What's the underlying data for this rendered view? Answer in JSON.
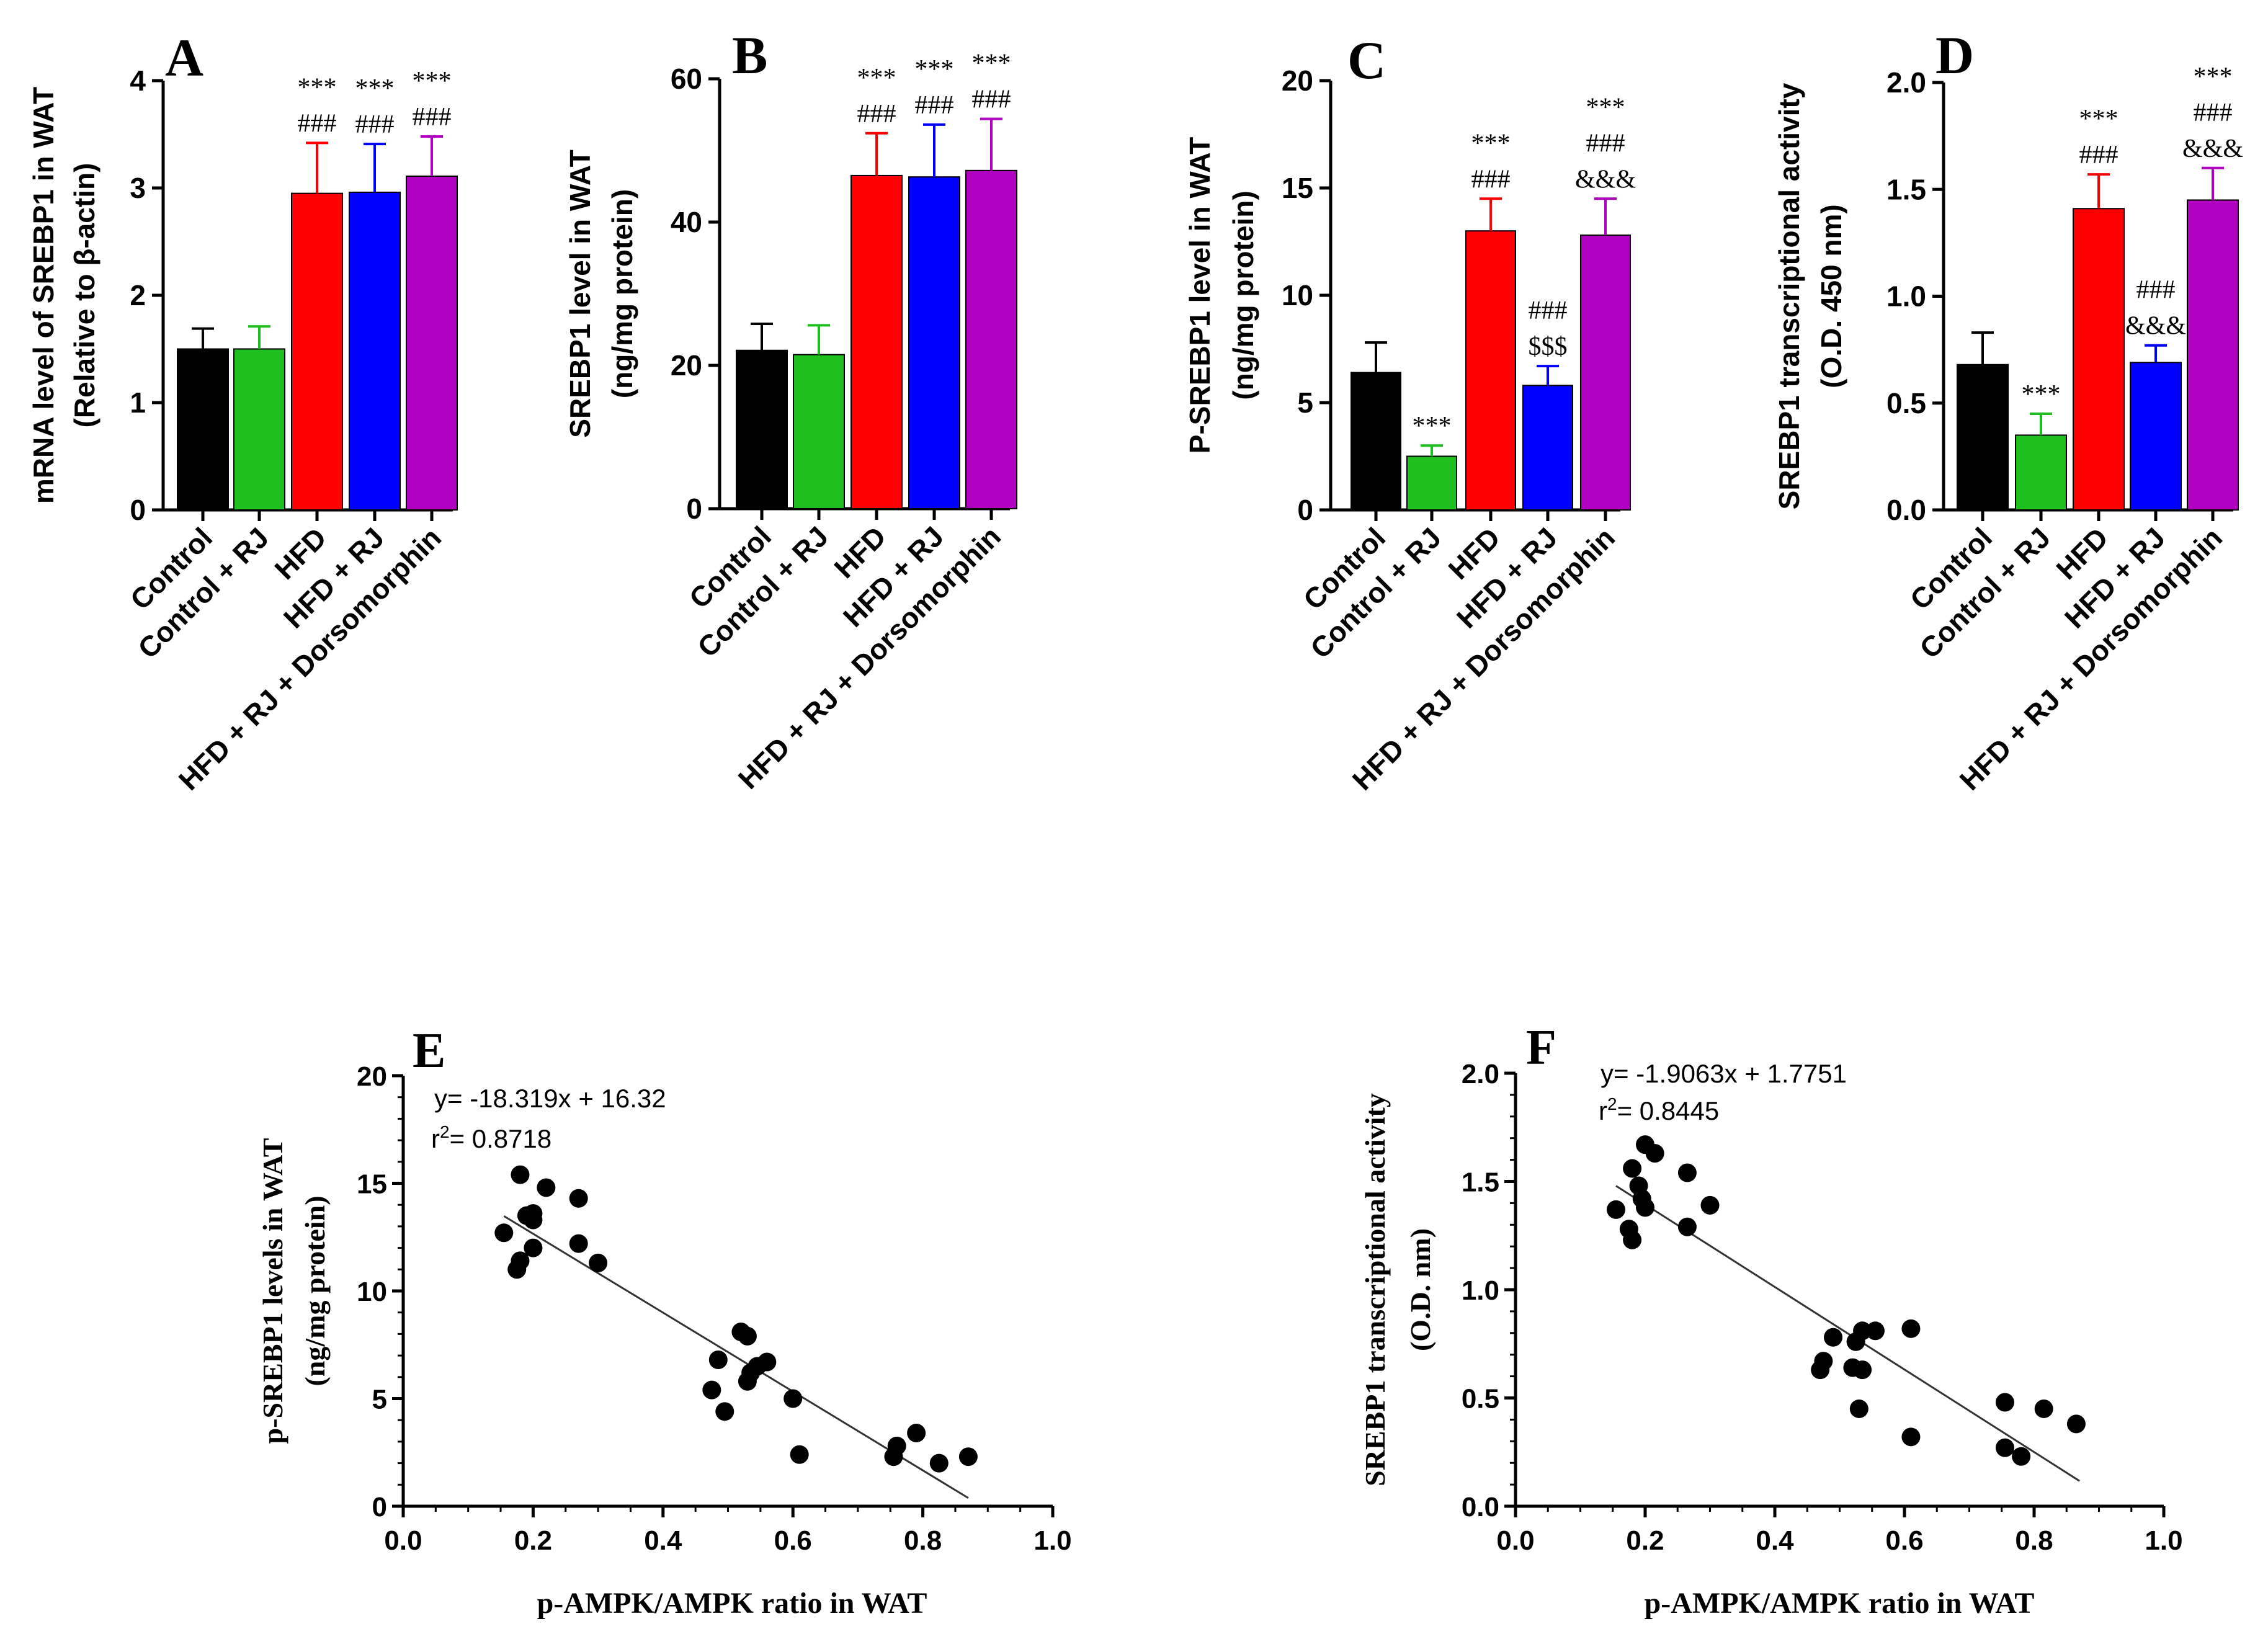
{
  "colors": {
    "axis": "#000000",
    "control": "#000000",
    "control_rj": "#1fbf1f",
    "hfd": "#ff0000",
    "hfd_rj": "#0000ff",
    "hfd_rj_dorso": "#b000c0",
    "point": "#000000",
    "fit_line": "#333333"
  },
  "chart_data": [
    {
      "id": "A",
      "type": "bar",
      "panel_letter": "A",
      "ylabel_line1": "mRNA level of SREBP1 in WAT",
      "ylabel_line2": "(Relative to β-actin)",
      "ylim": [
        0,
        4
      ],
      "yticks": [
        0,
        1,
        2,
        3,
        4
      ],
      "ytick_labels": [
        "0",
        "1",
        "2",
        "3",
        "4"
      ],
      "categories": [
        "Control",
        "Control + RJ",
        "HFD",
        "HFD + RJ",
        "HFD + RJ + Dorsomorphin"
      ],
      "values": [
        1.5,
        1.5,
        2.95,
        2.96,
        3.11
      ],
      "errors": [
        0.19,
        0.21,
        0.47,
        0.45,
        0.37
      ],
      "annotations": [
        [],
        [],
        [
          "***",
          "###"
        ],
        [
          "***",
          "###"
        ],
        [
          "***",
          "###"
        ]
      ]
    },
    {
      "id": "B",
      "type": "bar",
      "panel_letter": "B",
      "ylabel_line1": "SREBP1 level in WAT",
      "ylabel_line2": "(ng/mg protein)",
      "ylim": [
        0,
        60
      ],
      "yticks": [
        0,
        20,
        40,
        60
      ],
      "ytick_labels": [
        "0",
        "20",
        "40",
        "60"
      ],
      "categories": [
        "Control",
        "Control + RJ",
        "HFD",
        "HFD + RJ",
        "HFD + RJ + Dorsomorphin"
      ],
      "values": [
        22.1,
        21.5,
        46.5,
        46.3,
        47.2
      ],
      "errors": [
        3.7,
        4.1,
        5.9,
        7.3,
        7.2
      ],
      "annotations": [
        [],
        [],
        [
          "***",
          "###"
        ],
        [
          "***",
          "###"
        ],
        [
          "***",
          "###"
        ]
      ]
    },
    {
      "id": "C",
      "type": "bar",
      "panel_letter": "C",
      "ylabel_line1": "P-SREBP1 level in WAT",
      "ylabel_line2": "(ng/mg protein)",
      "ylim": [
        0,
        20
      ],
      "yticks": [
        0,
        5,
        10,
        15,
        20
      ],
      "ytick_labels": [
        "0",
        "5",
        "10",
        "15",
        "20"
      ],
      "categories": [
        "Control",
        "Control + RJ",
        "HFD",
        "HFD + RJ",
        "HFD + RJ + Dorsomorphin"
      ],
      "values": [
        6.4,
        2.5,
        13.0,
        5.8,
        12.8
      ],
      "errors": [
        1.4,
        0.5,
        1.5,
        0.9,
        1.7
      ],
      "annotations": [
        [],
        [
          "***"
        ],
        [
          "***",
          "###"
        ],
        [
          "###",
          "$$$"
        ],
        [
          "***",
          "###",
          "&&&"
        ]
      ]
    },
    {
      "id": "D",
      "type": "bar",
      "panel_letter": "D",
      "ylabel_line1": "SREBP1 transcriptional activity",
      "ylabel_line2": "(O.D. 450 nm)",
      "ylim": [
        0,
        2.0
      ],
      "yticks": [
        0,
        0.5,
        1.0,
        1.5,
        2.0
      ],
      "ytick_labels": [
        "0.0",
        "0.5",
        "1.0",
        "1.5",
        "2.0"
      ],
      "categories": [
        "Control",
        "Control + RJ",
        "HFD",
        "HFD + RJ",
        "HFD + RJ + Dorsomorphin"
      ],
      "values": [
        0.68,
        0.35,
        1.41,
        0.69,
        1.45
      ],
      "errors": [
        0.15,
        0.1,
        0.16,
        0.08,
        0.15
      ],
      "annotations": [
        [],
        [
          "***"
        ],
        [
          "***",
          "###"
        ],
        [
          "###",
          "&&&"
        ],
        [
          "***",
          "###",
          "&&&"
        ]
      ]
    },
    {
      "id": "E",
      "type": "scatter",
      "panel_letter": "E",
      "xlabel": "p-AMPK/AMPK ratio in  WAT",
      "ylabel_line1": "p-SREBP1 levels in  WAT",
      "ylabel_line2": "(ng/mg protein)",
      "xlim": [
        0,
        1.0
      ],
      "ylim": [
        0,
        20
      ],
      "xticks": [
        0,
        0.2,
        0.4,
        0.6,
        0.8,
        1.0
      ],
      "xtick_labels": [
        "0.0",
        "0.2",
        "0.4",
        "0.6",
        "0.8",
        "1.0"
      ],
      "yticks": [
        0,
        5,
        10,
        15,
        20
      ],
      "ytick_labels": [
        "0",
        "5",
        "10",
        "15",
        "20"
      ],
      "equation": "y= -18.319x + 16.32",
      "r2_prefix": "r",
      "r2_sup": "2",
      "r2_value": "= 0.8718",
      "fit": {
        "slope": -18.319,
        "intercept": 16.32,
        "x_range": [
          0.155,
          0.87
        ]
      },
      "points": [
        [
          0.155,
          12.7
        ],
        [
          0.18,
          15.4
        ],
        [
          0.2,
          13.3
        ],
        [
          0.22,
          14.8
        ],
        [
          0.19,
          13.5
        ],
        [
          0.2,
          13.6
        ],
        [
          0.175,
          11.0
        ],
        [
          0.18,
          11.4
        ],
        [
          0.2,
          12.0
        ],
        [
          0.27,
          14.3
        ],
        [
          0.27,
          12.2
        ],
        [
          0.3,
          11.3
        ],
        [
          0.475,
          5.4
        ],
        [
          0.485,
          6.8
        ],
        [
          0.495,
          4.4
        ],
        [
          0.52,
          8.1
        ],
        [
          0.53,
          7.9
        ],
        [
          0.53,
          5.8
        ],
        [
          0.535,
          6.2
        ],
        [
          0.56,
          6.7
        ],
        [
          0.6,
          5.0
        ],
        [
          0.61,
          2.4
        ],
        [
          0.755,
          2.3
        ],
        [
          0.76,
          2.8
        ],
        [
          0.79,
          3.4
        ],
        [
          0.825,
          2.0
        ],
        [
          0.87,
          2.3
        ],
        [
          0.545,
          6.5
        ]
      ]
    },
    {
      "id": "F",
      "type": "scatter",
      "panel_letter": "F",
      "xlabel": "p-AMPK/AMPK ratio in  WAT",
      "ylabel_line1": "SREBP1 transcriptional activity",
      "ylabel_line2": "(O.D. nm)",
      "xlim": [
        0,
        1.0
      ],
      "ylim": [
        0,
        2.0
      ],
      "xticks": [
        0,
        0.2,
        0.4,
        0.6,
        0.8,
        1.0
      ],
      "xtick_labels": [
        "0.0",
        "0.2",
        "0.4",
        "0.6",
        "0.8",
        "1.0"
      ],
      "yticks": [
        0,
        0.5,
        1.0,
        1.5,
        2.0
      ],
      "ytick_labels": [
        "0.0",
        "0.5",
        "1.0",
        "1.5",
        "2.0"
      ],
      "equation": "y= -1.9063x + 1.7751",
      "r2_prefix": "r",
      "r2_sup": "2",
      "r2_value": "= 0.8445",
      "fit": {
        "slope": -1.9063,
        "intercept": 1.7751,
        "x_range": [
          0.155,
          0.87
        ]
      },
      "points": [
        [
          0.155,
          1.37
        ],
        [
          0.175,
          1.28
        ],
        [
          0.18,
          1.23
        ],
        [
          0.18,
          1.56
        ],
        [
          0.19,
          1.48
        ],
        [
          0.195,
          1.42
        ],
        [
          0.2,
          1.38
        ],
        [
          0.2,
          1.67
        ],
        [
          0.215,
          1.63
        ],
        [
          0.265,
          1.54
        ],
        [
          0.265,
          1.29
        ],
        [
          0.3,
          1.39
        ],
        [
          0.47,
          0.63
        ],
        [
          0.475,
          0.67
        ],
        [
          0.49,
          0.78
        ],
        [
          0.52,
          0.64
        ],
        [
          0.525,
          0.76
        ],
        [
          0.53,
          0.45
        ],
        [
          0.535,
          0.81
        ],
        [
          0.535,
          0.63
        ],
        [
          0.555,
          0.81
        ],
        [
          0.61,
          0.82
        ],
        [
          0.61,
          0.32
        ],
        [
          0.755,
          0.48
        ],
        [
          0.755,
          0.27
        ],
        [
          0.78,
          0.23
        ],
        [
          0.815,
          0.45
        ],
        [
          0.865,
          0.38
        ]
      ]
    }
  ]
}
